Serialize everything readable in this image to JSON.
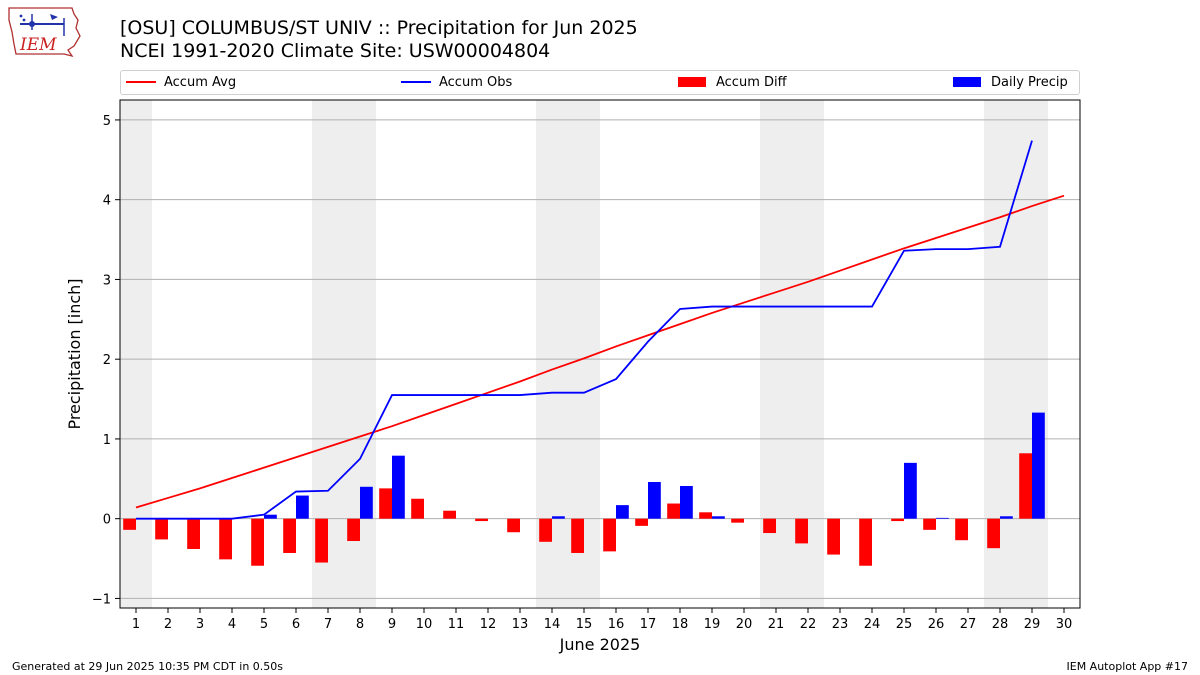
{
  "header": {
    "title_line1": "[OSU] COLUMBUS/ST UNIV :: Precipitation for Jun 2025",
    "title_line2": "NCEI 1991-2020 Climate Site: USW00004804"
  },
  "logo": {
    "text": "IEM"
  },
  "footer": {
    "left": "Generated at 29 Jun 2025 10:35 PM CDT in 0.50s",
    "right": "IEM Autoplot App #17"
  },
  "legend": [
    {
      "label": "Accum Avg",
      "kind": "line",
      "color": "#ff0000"
    },
    {
      "label": "Accum Obs",
      "kind": "line",
      "color": "#0000ff"
    },
    {
      "label": "Accum Diff",
      "kind": "bar",
      "color": "#ff0000"
    },
    {
      "label": "Daily Precip",
      "kind": "bar",
      "color": "#0000ff"
    }
  ],
  "chart_data": {
    "type": "bar",
    "xlabel": "June 2025",
    "ylabel": "Precipitation [inch]",
    "xlim": [
      0.5,
      30.5
    ],
    "ylim": [
      -1.12,
      5.25
    ],
    "yticks": [
      -1,
      0,
      1,
      2,
      3,
      4,
      5
    ],
    "xticks": [
      1,
      2,
      3,
      4,
      5,
      6,
      7,
      8,
      9,
      10,
      11,
      12,
      13,
      14,
      15,
      16,
      17,
      18,
      19,
      20,
      21,
      22,
      23,
      24,
      25,
      26,
      27,
      28,
      29,
      30
    ],
    "grid": "horizontal",
    "weekend_shading": [
      [
        0.5,
        1.5
      ],
      [
        6.5,
        8.5
      ],
      [
        13.5,
        15.5
      ],
      [
        20.5,
        22.5
      ],
      [
        27.5,
        29.5
      ]
    ],
    "colors": {
      "avg": "#ff0000",
      "obs": "#0000ff",
      "diff": "#ff0000",
      "daily": "#0000ff",
      "shade": "#eeeeee",
      "grid": "#b0b0b0"
    },
    "series": [
      {
        "name": "Accum Avg",
        "type": "line",
        "days": [
          1,
          2,
          3,
          4,
          5,
          6,
          7,
          8,
          9,
          10,
          11,
          12,
          13,
          14,
          15,
          16,
          17,
          18,
          19,
          20,
          21,
          22,
          23,
          24,
          25,
          26,
          27,
          28,
          29,
          30
        ],
        "values": [
          0.14,
          0.26,
          0.38,
          0.51,
          0.64,
          0.77,
          0.9,
          1.03,
          1.16,
          1.3,
          1.44,
          1.58,
          1.72,
          1.87,
          2.01,
          2.16,
          2.3,
          2.44,
          2.58,
          2.71,
          2.84,
          2.97,
          3.11,
          3.25,
          3.39,
          3.52,
          3.65,
          3.78,
          3.92,
          4.05
        ]
      },
      {
        "name": "Accum Obs",
        "type": "line",
        "days": [
          1,
          2,
          3,
          4,
          5,
          6,
          7,
          8,
          9,
          10,
          11,
          12,
          13,
          14,
          15,
          16,
          17,
          18,
          19,
          20,
          21,
          22,
          23,
          24,
          25,
          26,
          27,
          28,
          29
        ],
        "values": [
          0.0,
          0.0,
          0.0,
          0.0,
          0.05,
          0.34,
          0.35,
          0.75,
          1.55,
          1.55,
          1.55,
          1.55,
          1.55,
          1.58,
          1.58,
          1.75,
          2.22,
          2.63,
          2.66,
          2.66,
          2.66,
          2.66,
          2.66,
          2.66,
          3.36,
          3.38,
          3.38,
          3.41,
          4.74
        ]
      },
      {
        "name": "Accum Diff",
        "type": "bar",
        "days": [
          1,
          2,
          3,
          4,
          5,
          6,
          7,
          8,
          9,
          10,
          11,
          12,
          13,
          14,
          15,
          16,
          17,
          18,
          19,
          20,
          21,
          22,
          23,
          24,
          25,
          26,
          27,
          28,
          29
        ],
        "values": [
          -0.14,
          -0.26,
          -0.38,
          -0.51,
          -0.59,
          -0.43,
          -0.55,
          -0.28,
          0.38,
          0.25,
          0.1,
          -0.03,
          -0.17,
          -0.29,
          -0.43,
          -0.41,
          -0.09,
          0.19,
          0.08,
          -0.05,
          -0.18,
          -0.31,
          -0.45,
          -0.59,
          -0.03,
          -0.14,
          -0.27,
          -0.37,
          0.82
        ]
      },
      {
        "name": "Daily Precip",
        "type": "bar",
        "days": [
          5,
          6,
          8,
          9,
          14,
          16,
          17,
          18,
          19,
          25,
          26,
          28,
          29
        ],
        "values": [
          0.05,
          0.29,
          0.4,
          0.79,
          0.03,
          0.17,
          0.46,
          0.41,
          0.03,
          0.7,
          0.01,
          0.03,
          1.33
        ]
      }
    ]
  }
}
